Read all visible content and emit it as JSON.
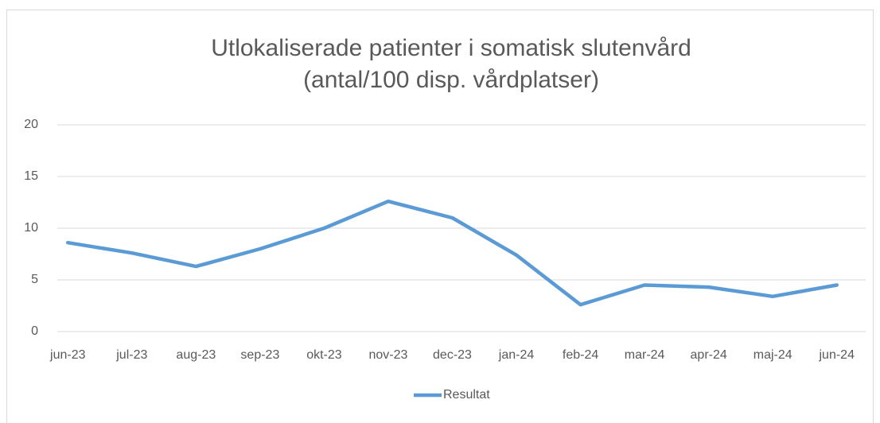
{
  "chart_data": {
    "type": "line",
    "title": [
      "Utlokaliserade patienter i somatisk slutenvård",
      "(antal/100 disp. vårdplatser)"
    ],
    "categories": [
      "jun-23",
      "jul-23",
      "aug-23",
      "sep-23",
      "okt-23",
      "nov-23",
      "dec-23",
      "jan-24",
      "feb-24",
      "mar-24",
      "apr-24",
      "maj-24",
      "jun-24"
    ],
    "series": [
      {
        "name": "Resultat",
        "color": "#5b9bd5",
        "values": [
          8.6,
          7.6,
          6.3,
          8.0,
          10.0,
          12.6,
          11.0,
          7.4,
          2.6,
          4.5,
          4.3,
          3.4,
          4.5
        ]
      }
    ],
    "ylim": [
      0,
      20
    ],
    "yticks": [
      0,
      5,
      10,
      15,
      20
    ],
    "grid": true,
    "legend": "bottom"
  }
}
